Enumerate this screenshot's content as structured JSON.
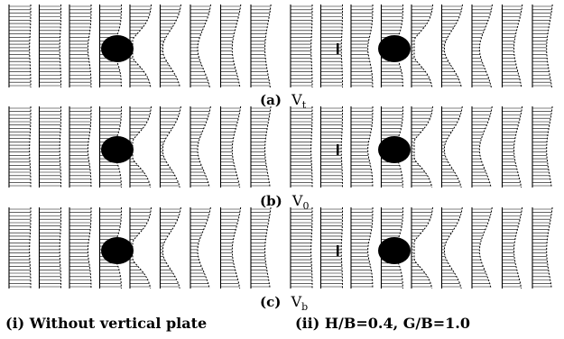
{
  "figure": {
    "rows": [
      {
        "letter": "(a)",
        "var": "V",
        "sub": "t"
      },
      {
        "letter": "(b)",
        "var": "V",
        "sub": "0"
      },
      {
        "letter": "(c)",
        "var": "V",
        "sub": "b"
      }
    ],
    "columns": [
      {
        "caption": "(i)  Without vertical plate",
        "has_plate": false
      },
      {
        "caption": "(ii)  H/B=0.4,  G/B=1.0",
        "has_plate": true
      }
    ],
    "colors": {
      "ink": "#000000",
      "background": "#ffffff"
    }
  }
}
